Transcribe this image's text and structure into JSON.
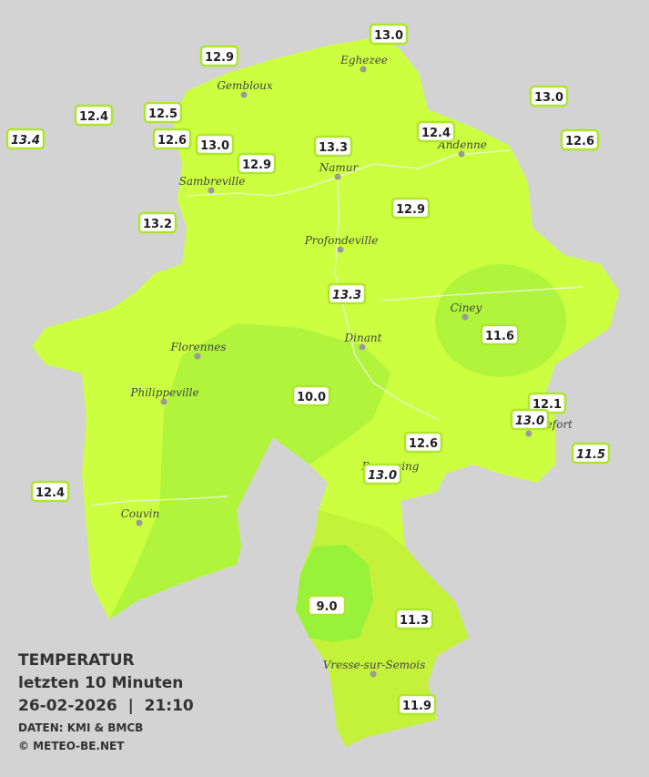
{
  "title": "TEMPERATUR",
  "subtitle": "letzten 10 Minuten",
  "datetime": "26-02-2026  |  21:10",
  "source": "DATEN: KMI & BMCB",
  "copyright": "© METEO-BE.NET",
  "cities": [
    "Eghezee",
    "Gembloux",
    "Andenne",
    "Namur",
    "Sambreville",
    "Profondeville",
    "Ciney",
    "Dinant",
    "Florennes",
    "Philippeville",
    "Rochefort",
    "Beauraing",
    "Couvin",
    "Vresse-sur-Semois"
  ],
  "readings": [
    {
      "text": "13.0"
    },
    {
      "text": "12.9"
    },
    {
      "text": "13.0"
    },
    {
      "text": "12.4"
    },
    {
      "text": "12.5"
    },
    {
      "text": "13.4",
      "italic": true
    },
    {
      "text": "12.6"
    },
    {
      "text": "13.0"
    },
    {
      "text": "12.4"
    },
    {
      "text": "12.6"
    },
    {
      "text": "13.3"
    },
    {
      "text": "12.9"
    },
    {
      "text": "13.2"
    },
    {
      "text": "12.9"
    },
    {
      "text": "13.3",
      "italic": true
    },
    {
      "text": "11.6"
    },
    {
      "text": "10.0"
    },
    {
      "text": "12.1"
    },
    {
      "text": "13.0",
      "italic": true
    },
    {
      "text": "12.6"
    },
    {
      "text": "11.5",
      "italic": true
    },
    {
      "text": "13.0",
      "italic": true
    },
    {
      "text": "12.4"
    },
    {
      "text": "9.0"
    },
    {
      "text": "11.3"
    },
    {
      "text": "11.9"
    }
  ]
}
